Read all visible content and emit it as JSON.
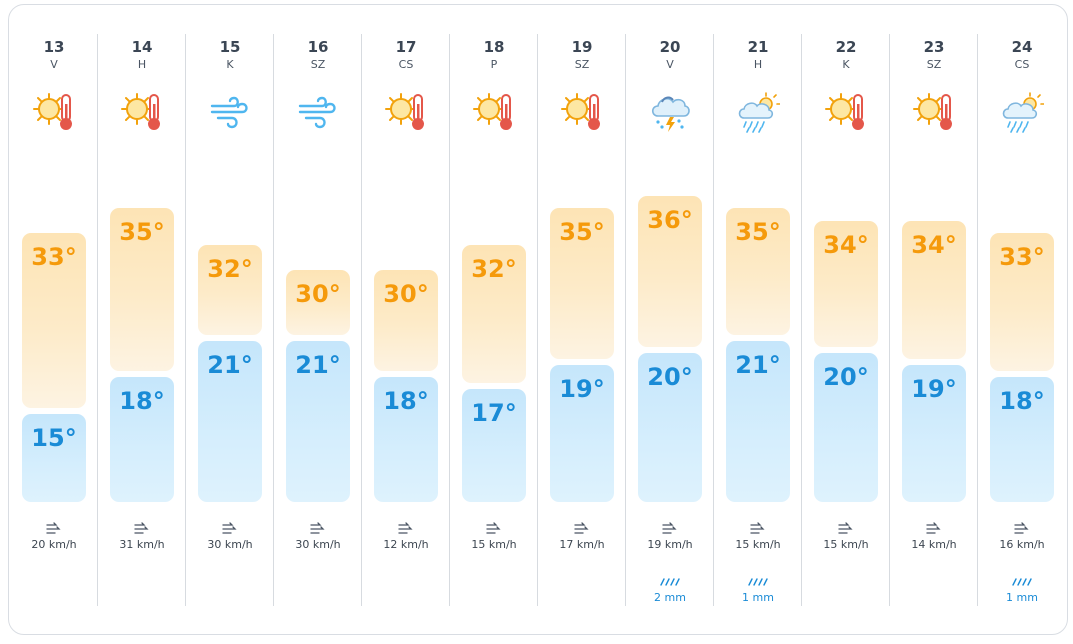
{
  "days": [
    {
      "date": "13",
      "weekday": "V",
      "icon": "sun-hot-icon",
      "max": "33°",
      "min": "15°",
      "wind": "20 km/h",
      "rain": ""
    },
    {
      "date": "14",
      "weekday": "H",
      "icon": "sun-hot-icon",
      "max": "35°",
      "min": "18°",
      "wind": "31 km/h",
      "rain": ""
    },
    {
      "date": "15",
      "weekday": "K",
      "icon": "wind-icon",
      "max": "32°",
      "min": "21°",
      "wind": "30 km/h",
      "rain": ""
    },
    {
      "date": "16",
      "weekday": "SZ",
      "icon": "wind-icon",
      "max": "30°",
      "min": "21°",
      "wind": "30 km/h",
      "rain": ""
    },
    {
      "date": "17",
      "weekday": "CS",
      "icon": "sun-hot-icon",
      "max": "30°",
      "min": "18°",
      "wind": "12 km/h",
      "rain": ""
    },
    {
      "date": "18",
      "weekday": "P",
      "icon": "sun-hot-icon",
      "max": "32°",
      "min": "17°",
      "wind": "15 km/h",
      "rain": ""
    },
    {
      "date": "19",
      "weekday": "SZ",
      "icon": "sun-hot-icon",
      "max": "35°",
      "min": "19°",
      "wind": "17 km/h",
      "rain": ""
    },
    {
      "date": "20",
      "weekday": "V",
      "icon": "thunderstorm-icon",
      "max": "36°",
      "min": "20°",
      "wind": "19 km/h",
      "rain": "2 mm"
    },
    {
      "date": "21",
      "weekday": "H",
      "icon": "sun-cloud-rain-icon",
      "max": "35°",
      "min": "21°",
      "wind": "15 km/h",
      "rain": "1 mm"
    },
    {
      "date": "22",
      "weekday": "K",
      "icon": "sun-hot-icon",
      "max": "34°",
      "min": "20°",
      "wind": "15 km/h",
      "rain": ""
    },
    {
      "date": "23",
      "weekday": "SZ",
      "icon": "sun-hot-icon",
      "max": "34°",
      "min": "19°",
      "wind": "14 km/h",
      "rain": ""
    },
    {
      "date": "24",
      "weekday": "CS",
      "icon": "sun-cloud-rain-icon",
      "max": "33°",
      "min": "18°",
      "wind": "16 km/h",
      "rain": "1 mm"
    }
  ],
  "colors": {
    "max_text": "#f59a0b",
    "min_text": "#1a8bd6",
    "rain_text": "#1a8bd6"
  }
}
